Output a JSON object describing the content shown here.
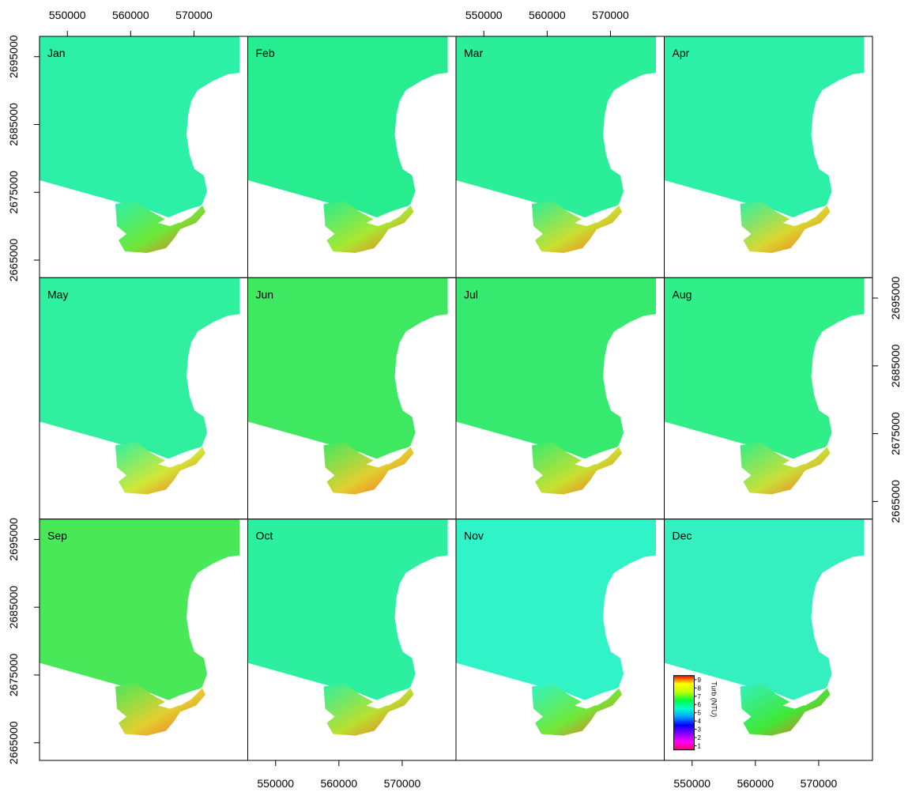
{
  "map_data": {
    "xlim": [
      545600,
      578500
    ],
    "ylim": [
      2662400,
      2698000
    ],
    "xticks": [
      550000,
      560000,
      570000
    ],
    "yticks": [
      2665000,
      2675000,
      2685000,
      2695000
    ],
    "panels": [
      {
        "label": "Jan",
        "water": "#2cf0a8",
        "bay": "#6ee838"
      },
      {
        "label": "Feb",
        "water": "#28ec90",
        "bay": "#a8e830"
      },
      {
        "label": "Mar",
        "water": "#2aee98",
        "bay": "#c8e030"
      },
      {
        "label": "Apr",
        "water": "#2cf0a8",
        "bay": "#d8d830"
      },
      {
        "label": "May",
        "water": "#30f0a0",
        "bay": "#d0e838"
      },
      {
        "label": "Jun",
        "water": "#3ee860",
        "bay": "#e0d030"
      },
      {
        "label": "Jul",
        "water": "#36ea70",
        "bay": "#c8e030"
      },
      {
        "label": "Aug",
        "water": "#30ee88",
        "bay": "#c8e038"
      },
      {
        "label": "Sep",
        "water": "#48e858",
        "bay": "#e0d030"
      },
      {
        "label": "Oct",
        "water": "#2cf0a0",
        "bay": "#b8e030"
      },
      {
        "label": "Nov",
        "water": "#30f4c8",
        "bay": "#70e838"
      },
      {
        "label": "Dec",
        "water": "#34f0c0",
        "bay": "#40e838"
      }
    ],
    "legend": {
      "title": "Turb (NTU)",
      "lim": [
        0.5,
        9.5
      ],
      "ticks": [
        1,
        2,
        3,
        4,
        5,
        6,
        7,
        8,
        9
      ],
      "colors": [
        "#ff0060",
        "#ff00ff",
        "#8000ff",
        "#0000ff",
        "#00a0ff",
        "#00ffd0",
        "#00ff40",
        "#c0ff00",
        "#ffff00",
        "#ff0000"
      ]
    }
  }
}
